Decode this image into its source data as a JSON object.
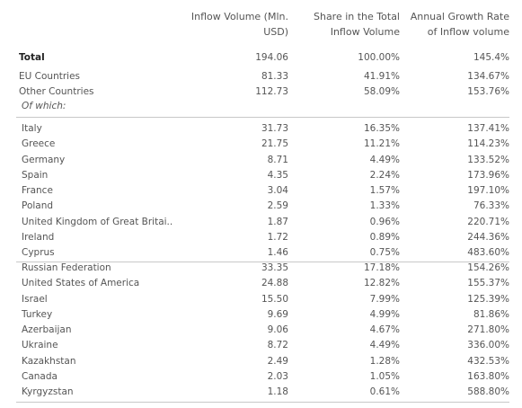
{
  "headers": {
    "inflow_line1": "Inflow Volume (Mln.",
    "inflow_line2": "USD)",
    "share_line1": "Share in the Total",
    "share_line2": "Inflow Volume",
    "growth_line1": "Annual Growth Rate",
    "growth_line2": "of Inflow volume"
  },
  "summary": {
    "total": {
      "label": "Total",
      "inflow": "194.06",
      "share": "100.00%",
      "growth": "145.4%"
    },
    "eu": {
      "label": "EU Countries",
      "inflow": "81.33",
      "share": "41.91%",
      "growth": "134.67%"
    },
    "other": {
      "label": "Other Countries",
      "inflow": "112.73",
      "share": "58.09%",
      "growth": "153.76%"
    },
    "of_which": "Of which:"
  },
  "eu_rows": [
    {
      "country": "Italy",
      "inflow": "31.73",
      "share": "16.35%",
      "growth": "137.41%"
    },
    {
      "country": "Greece",
      "inflow": "21.75",
      "share": "11.21%",
      "growth": "114.23%"
    },
    {
      "country": "Germany",
      "inflow": "8.71",
      "share": "4.49%",
      "growth": "133.52%"
    },
    {
      "country": "Spain",
      "inflow": "4.35",
      "share": "2.24%",
      "growth": "173.96%"
    },
    {
      "country": "France",
      "inflow": "3.04",
      "share": "1.57%",
      "growth": "197.10%"
    },
    {
      "country": "Poland",
      "inflow": "2.59",
      "share": "1.33%",
      "growth": "76.33%"
    },
    {
      "country": "United Kingdom of Great Britai..",
      "inflow": "1.87",
      "share": "0.96%",
      "growth": "220.71%"
    },
    {
      "country": "Ireland",
      "inflow": "1.72",
      "share": "0.89%",
      "growth": "244.36%"
    },
    {
      "country": "Cyprus",
      "inflow": "1.46",
      "share": "0.75%",
      "growth": "483.60%"
    }
  ],
  "other_rows": [
    {
      "country": "Russian Federation",
      "inflow": "33.35",
      "share": "17.18%",
      "growth": "154.26%"
    },
    {
      "country": "United States of America",
      "inflow": "24.88",
      "share": "12.82%",
      "growth": "155.37%"
    },
    {
      "country": "Israel",
      "inflow": "15.50",
      "share": "7.99%",
      "growth": "125.39%"
    },
    {
      "country": "Turkey",
      "inflow": "9.69",
      "share": "4.99%",
      "growth": "81.86%"
    },
    {
      "country": "Azerbaijan",
      "inflow": "9.06",
      "share": "4.67%",
      "growth": "271.80%"
    },
    {
      "country": "Ukraine",
      "inflow": "8.72",
      "share": "4.49%",
      "growth": "336.00%"
    },
    {
      "country": "Kazakhstan",
      "inflow": "2.49",
      "share": "1.28%",
      "growth": "432.53%"
    },
    {
      "country": "Canada",
      "inflow": "2.03",
      "share": "1.05%",
      "growth": "163.80%"
    },
    {
      "country": "Kyrgyzstan",
      "inflow": "1.18",
      "share": "0.61%",
      "growth": "588.80%"
    }
  ]
}
